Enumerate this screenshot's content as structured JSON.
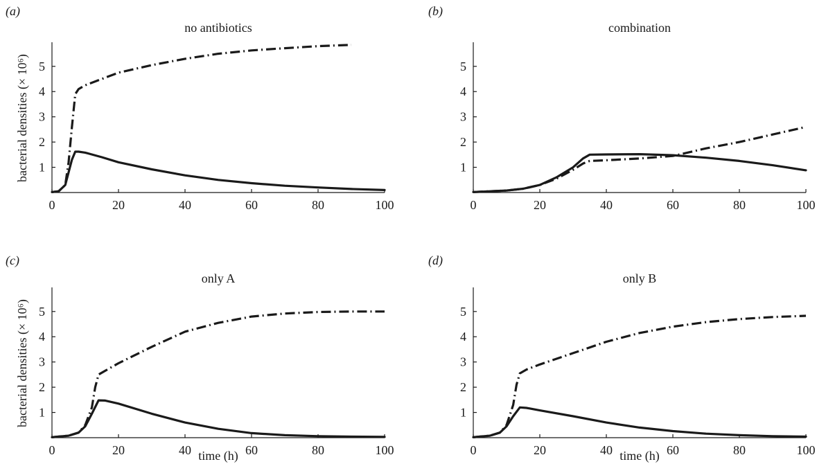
{
  "figure": {
    "ylabel": "bacterial densities (× 10⁶)",
    "xlabel": "time (h)"
  },
  "chart_data": [
    {
      "type": "line",
      "panel_label": "(a)",
      "title": "no antibiotics",
      "xlim": [
        0,
        100
      ],
      "ylim": [
        0,
        5.9
      ],
      "xticks": [
        0,
        20,
        40,
        60,
        80,
        100
      ],
      "yticks": [
        1,
        2,
        3,
        4,
        5
      ],
      "series": [
        {
          "style": "dash-dot",
          "x": [
            0,
            2,
            4,
            5,
            6,
            7,
            8,
            10,
            15,
            20,
            30,
            40,
            50,
            60,
            70,
            80,
            90
          ],
          "y": [
            0.02,
            0.05,
            0.3,
            1.2,
            2.6,
            3.9,
            4.1,
            4.25,
            4.5,
            4.75,
            5.05,
            5.3,
            5.5,
            5.63,
            5.72,
            5.8,
            5.85
          ]
        },
        {
          "style": "solid",
          "x": [
            0,
            2,
            4,
            5,
            6,
            7,
            8,
            10,
            15,
            20,
            30,
            40,
            50,
            60,
            70,
            80,
            90,
            100
          ],
          "y": [
            0.02,
            0.05,
            0.3,
            0.8,
            1.3,
            1.62,
            1.62,
            1.58,
            1.4,
            1.2,
            0.92,
            0.68,
            0.5,
            0.37,
            0.27,
            0.2,
            0.14,
            0.1
          ]
        }
      ]
    },
    {
      "type": "line",
      "panel_label": "(b)",
      "title": "combination",
      "xlim": [
        0,
        100
      ],
      "ylim": [
        0,
        5.9
      ],
      "xticks": [
        0,
        20,
        40,
        60,
        80,
        100
      ],
      "yticks": [
        1,
        2,
        3,
        4,
        5
      ],
      "series": [
        {
          "style": "dash-dot",
          "x": [
            0,
            10,
            15,
            20,
            25,
            30,
            33,
            35,
            40,
            50,
            60,
            70,
            80,
            90,
            100
          ],
          "y": [
            0.02,
            0.08,
            0.15,
            0.3,
            0.55,
            0.9,
            1.15,
            1.25,
            1.28,
            1.35,
            1.45,
            1.75,
            2.0,
            2.3,
            2.6
          ]
        },
        {
          "style": "solid",
          "x": [
            0,
            10,
            15,
            20,
            25,
            30,
            33,
            35,
            40,
            50,
            60,
            70,
            80,
            90,
            100
          ],
          "y": [
            0.02,
            0.08,
            0.15,
            0.3,
            0.6,
            1.0,
            1.35,
            1.5,
            1.51,
            1.52,
            1.48,
            1.38,
            1.25,
            1.08,
            0.88
          ]
        }
      ]
    },
    {
      "type": "line",
      "panel_label": "(c)",
      "title": "only A",
      "xlim": [
        0,
        100
      ],
      "ylim": [
        0,
        5.9
      ],
      "xticks": [
        0,
        20,
        40,
        60,
        80,
        100
      ],
      "yticks": [
        1,
        2,
        3,
        4,
        5
      ],
      "series": [
        {
          "style": "dash-dot",
          "x": [
            0,
            5,
            8,
            10,
            12,
            13,
            14,
            16,
            20,
            30,
            40,
            50,
            60,
            70,
            80,
            90,
            100
          ],
          "y": [
            0.02,
            0.08,
            0.2,
            0.5,
            1.2,
            2.0,
            2.5,
            2.65,
            2.95,
            3.6,
            4.2,
            4.55,
            4.8,
            4.92,
            4.98,
            5.0,
            5.0
          ]
        },
        {
          "style": "solid",
          "x": [
            0,
            5,
            8,
            10,
            12,
            14,
            16,
            20,
            30,
            40,
            50,
            60,
            70,
            80,
            90,
            100
          ],
          "y": [
            0.02,
            0.08,
            0.2,
            0.45,
            0.95,
            1.48,
            1.47,
            1.35,
            0.95,
            0.6,
            0.35,
            0.18,
            0.1,
            0.06,
            0.04,
            0.03
          ]
        }
      ]
    },
    {
      "type": "line",
      "panel_label": "(d)",
      "title": "only B",
      "xlim": [
        0,
        100
      ],
      "ylim": [
        0,
        5.9
      ],
      "xticks": [
        0,
        20,
        40,
        60,
        80,
        100
      ],
      "yticks": [
        1,
        2,
        3,
        4,
        5
      ],
      "series": [
        {
          "style": "dash-dot",
          "x": [
            0,
            5,
            8,
            10,
            12,
            13,
            14,
            16,
            20,
            30,
            40,
            50,
            60,
            70,
            80,
            90,
            100
          ],
          "y": [
            0.02,
            0.08,
            0.2,
            0.5,
            1.3,
            2.1,
            2.55,
            2.7,
            2.9,
            3.35,
            3.8,
            4.15,
            4.4,
            4.58,
            4.7,
            4.78,
            4.83
          ]
        },
        {
          "style": "solid",
          "x": [
            0,
            5,
            8,
            10,
            12,
            14,
            16,
            20,
            30,
            40,
            50,
            60,
            70,
            80,
            90,
            100
          ],
          "y": [
            0.02,
            0.08,
            0.2,
            0.45,
            0.85,
            1.2,
            1.18,
            1.08,
            0.85,
            0.6,
            0.4,
            0.26,
            0.16,
            0.1,
            0.06,
            0.04
          ]
        }
      ]
    }
  ]
}
